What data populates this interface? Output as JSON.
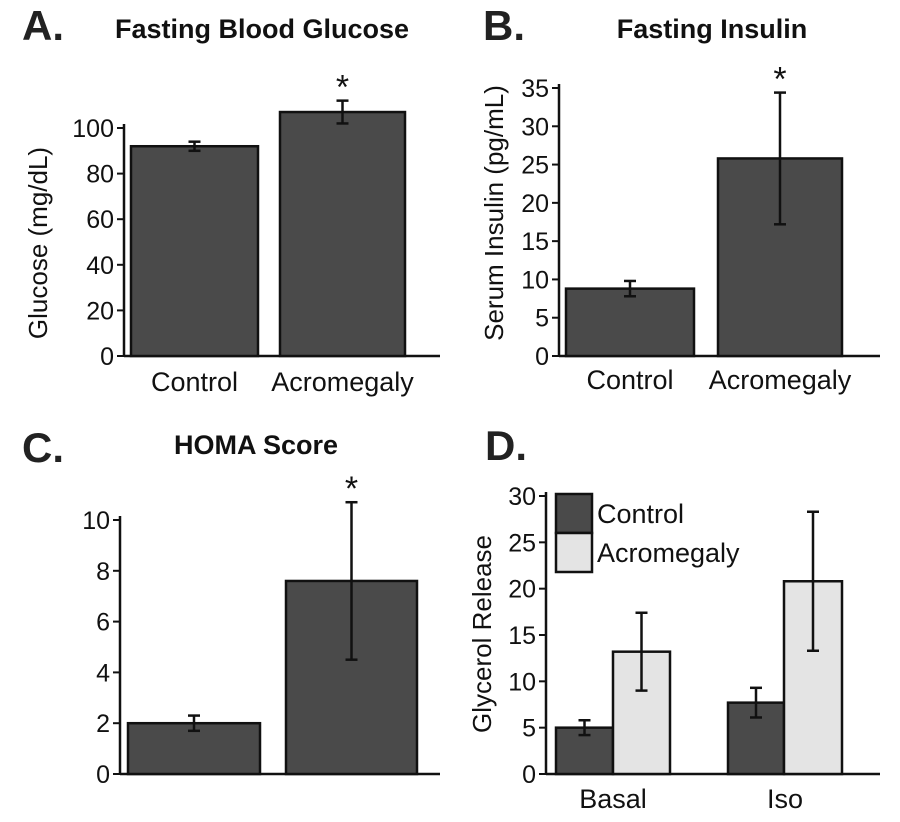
{
  "chart_data": [
    {
      "type": "bar",
      "panel": "A.",
      "title": "Fasting Blood Glucose",
      "ylabel": "Glucose (mg/dL)",
      "categories": [
        "Control",
        "Acromegaly"
      ],
      "values": [
        92,
        107
      ],
      "errors": [
        2,
        5
      ],
      "significance": [
        "",
        "*"
      ],
      "yticks": [
        "0",
        "20",
        "40",
        "60",
        "80",
        "100"
      ],
      "ylim": [
        0,
        100
      ],
      "colors": {
        "bar": "#4a4a4a"
      }
    },
    {
      "type": "bar",
      "panel": "B.",
      "title": "Fasting Insulin",
      "ylabel": "Serum Insulin (pg/mL)",
      "categories": [
        "Control",
        "Acromegaly"
      ],
      "values": [
        8.8,
        25.8
      ],
      "errors": [
        1.0,
        8.6
      ],
      "significance": [
        "",
        "*"
      ],
      "yticks": [
        "0",
        "5",
        "10",
        "15",
        "20",
        "25",
        "30",
        "35"
      ],
      "ylim": [
        0,
        35
      ],
      "colors": {
        "bar": "#4a4a4a"
      }
    },
    {
      "type": "bar",
      "panel": "C.",
      "title": "HOMA Score",
      "ylabel": "",
      "categories": [
        "",
        ""
      ],
      "values": [
        2.0,
        7.6
      ],
      "errors": [
        0.3,
        3.1
      ],
      "significance": [
        "",
        "*"
      ],
      "yticks": [
        "0",
        "2",
        "4",
        "6",
        "8",
        "10"
      ],
      "ylim": [
        0,
        10
      ],
      "colors": {
        "bar": "#4a4a4a"
      }
    },
    {
      "type": "bar",
      "panel": "D.",
      "title": "",
      "ylabel": "Glycerol Release",
      "categories": [
        "Basal",
        "Iso"
      ],
      "series": [
        {
          "name": "Control",
          "values": [
            5.0,
            7.7
          ],
          "errors": [
            0.8,
            1.6
          ],
          "color": "#4a4a4a"
        },
        {
          "name": "Acromegaly",
          "values": [
            13.2,
            20.8
          ],
          "errors": [
            4.2,
            7.5
          ],
          "color": "#e4e4e4"
        }
      ],
      "yticks": [
        "0",
        "5",
        "10",
        "15",
        "20",
        "25",
        "30"
      ],
      "ylim": [
        0,
        30
      ],
      "legend_position": "top-left"
    }
  ]
}
